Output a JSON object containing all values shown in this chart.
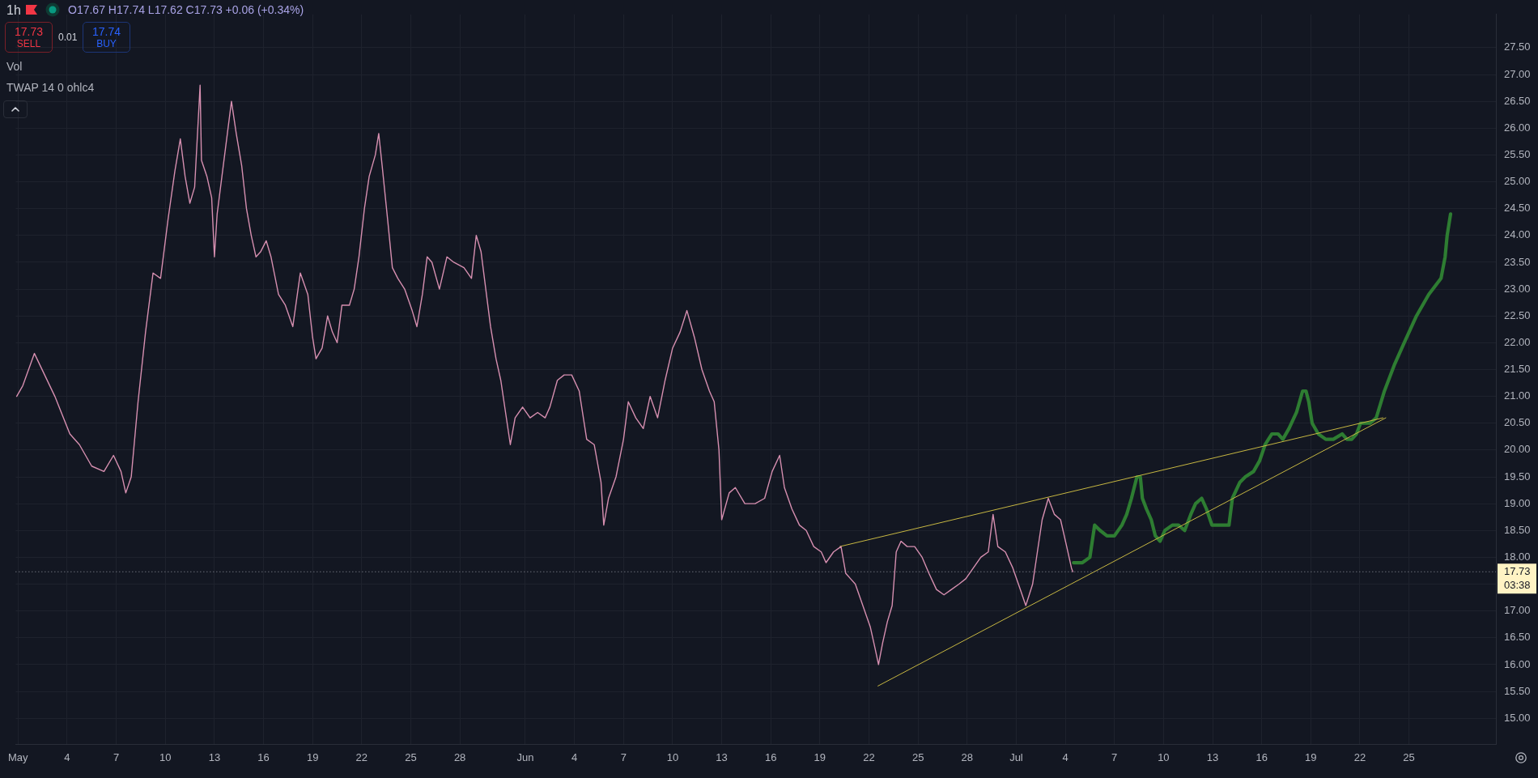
{
  "chart_data": {
    "type": "line",
    "title": "1h",
    "subtitle": "O17.67 H17.74 L17.62 C17.73 +0.06 (+0.34%)",
    "annotations": [
      "17.73",
      "SELL",
      "0.01",
      "17.74",
      "BUY",
      "Vol",
      "TWAP 14 0 ohlc4",
      "03:38"
    ],
    "xlim": [
      "--04-30T20:30",
      "--07-30T07:30"
    ],
    "xticks": [
      {
        "value": "--05-01",
        "label": "May"
      },
      {
        "value": "--05-04",
        "label": "4"
      },
      {
        "value": "--05-07",
        "label": "7"
      },
      {
        "value": "--05-10",
        "label": "10"
      },
      {
        "value": "--05-13",
        "label": "13"
      },
      {
        "value": "--05-16",
        "label": "16"
      },
      {
        "value": "--05-19",
        "label": "19"
      },
      {
        "value": "--05-22",
        "label": "22"
      },
      {
        "value": "--05-25",
        "label": "25"
      },
      {
        "value": "--05-28",
        "label": "28"
      },
      {
        "value": "--06-01",
        "label": "Jun"
      },
      {
        "value": "--06-04",
        "label": "4"
      },
      {
        "value": "--06-07",
        "label": "7"
      },
      {
        "value": "--06-10",
        "label": "10"
      },
      {
        "value": "--06-13",
        "label": "13"
      },
      {
        "value": "--06-16",
        "label": "16"
      },
      {
        "value": "--06-19",
        "label": "19"
      },
      {
        "value": "--06-22",
        "label": "22"
      },
      {
        "value": "--06-25",
        "label": "25"
      },
      {
        "value": "--06-28",
        "label": "28"
      },
      {
        "value": "--07-01",
        "label": "Jul"
      },
      {
        "value": "--07-04",
        "label": "4"
      },
      {
        "value": "--07-07",
        "label": "7"
      },
      {
        "value": "--07-10",
        "label": "10"
      },
      {
        "value": "--07-13",
        "label": "13"
      },
      {
        "value": "--07-16",
        "label": "16"
      },
      {
        "value": "--07-19",
        "label": "19"
      },
      {
        "value": "--07-22",
        "label": "22"
      },
      {
        "value": "--07-25",
        "label": "25"
      }
    ],
    "ylim": [
      14.52,
      28.12
    ],
    "yticks": [
      {
        "value": 15,
        "label": "15.00"
      },
      {
        "value": 15.5,
        "label": "15.50"
      },
      {
        "value": 16,
        "label": "16.00"
      },
      {
        "value": 16.5,
        "label": "16.50"
      },
      {
        "value": 17,
        "label": "17.00"
      },
      {
        "value": 17.5,
        "label": null
      },
      {
        "value": 18,
        "label": "18.00"
      },
      {
        "value": 18.5,
        "label": "18.50"
      },
      {
        "value": 19,
        "label": "19.00"
      },
      {
        "value": 19.5,
        "label": "19.50"
      },
      {
        "value": 20,
        "label": "20.00"
      },
      {
        "value": 20.5,
        "label": "20.50"
      },
      {
        "value": 21,
        "label": "21.00"
      },
      {
        "value": 21.5,
        "label": "21.50"
      },
      {
        "value": 22,
        "label": "22.00"
      },
      {
        "value": 22.5,
        "label": "22.50"
      },
      {
        "value": 23,
        "label": "23.00"
      },
      {
        "value": 23.5,
        "label": "23.50"
      },
      {
        "value": 24,
        "label": "24.00"
      },
      {
        "value": 24.5,
        "label": "24.50"
      },
      {
        "value": 25,
        "label": "25.00"
      },
      {
        "value": 25.5,
        "label": "25.50"
      },
      {
        "value": 26,
        "label": "26.00"
      },
      {
        "value": 26.5,
        "label": "26.50"
      },
      {
        "value": 27,
        "label": "27.00"
      },
      {
        "value": 27.5,
        "label": "27.50"
      }
    ],
    "grid": true,
    "marker": "none",
    "line_style": "solid",
    "ref_lines": [
      {
        "axis": "y",
        "value": 17.73,
        "label": "17.73",
        "color": "#9598a1",
        "line_style": "dotted"
      }
    ],
    "series": [
      {
        "color": "#d68fb0",
        "x": [
          "--04-30T22:00",
          "--05-01T07:00",
          "--05-02T00:00",
          "--05-03T06:00",
          "--05-04T04:00",
          "--05-04T18:00",
          "--05-05T12:00",
          "--05-06T06:00",
          "--05-06T20:00",
          "--05-07T07:00",
          "--05-07T14:00",
          "--05-07T22:00",
          "--05-08T08:00",
          "--05-08T19:00",
          "--05-09T06:00",
          "--05-09T17:00",
          "--05-10T04:00",
          "--05-10T14:00",
          "--05-10T22:00",
          "--05-11T05:00",
          "--05-11T12:00",
          "--05-11T19:00",
          "--05-12T03:00",
          "--05-12T05:00",
          "--05-12T13:00",
          "--05-12T20:00",
          "--05-13T00:00",
          "--05-13T04:00",
          "--05-13T11:00",
          "--05-13T19:00",
          "--05-14T01:00",
          "--05-14T08:00",
          "--05-14T16:00",
          "--05-14T23:00",
          "--05-15T06:00",
          "--05-15T13:00",
          "--05-15T20:00",
          "--05-16T04:00",
          "--05-16T11:00",
          "--05-16T22:00",
          "--05-17T08:00",
          "--05-17T19:00",
          "--05-18T06:00",
          "--05-18T17:00",
          "--05-19T00:00",
          "--05-19T05:00",
          "--05-19T14:00",
          "--05-19T22:00",
          "--05-20T05:00",
          "--05-20T12:00",
          "--05-20T19:00",
          "--05-21T06:00",
          "--05-21T13:00",
          "--05-21T20:00",
          "--05-22T04:00",
          "--05-22T11:00",
          "--05-22T20:00",
          "--05-23T01:00",
          "--05-23T06:00",
          "--05-23T14:00",
          "--05-23T21:00",
          "--05-24T05:00",
          "--05-24T15:00",
          "--05-25T02:00",
          "--05-25T09:00",
          "--05-25T17:00",
          "--05-26T00:00",
          "--05-26T07:00",
          "--05-26T18:00",
          "--05-27T05:00",
          "--05-27T15:00",
          "--05-28T06:00",
          "--05-28T17:00",
          "--05-29T00:00",
          "--05-29T07:00",
          "--05-29T14:00",
          "--05-29T21:00",
          "--05-30T05:00",
          "--05-30T12:00",
          "--05-30T19:00",
          "--05-31T02:00",
          "--05-31T09:00",
          "--05-31T20:00",
          "--06-01T07:00",
          "--06-01T18:00",
          "--06-02T05:00",
          "--06-02T12:00",
          "--06-02T23:00",
          "--06-03T09:00",
          "--06-03T20:00",
          "--06-04T07:00",
          "--06-04T18:00",
          "--06-05T05:00",
          "--06-05T15:00",
          "--06-05T19:00",
          "--06-06T02:00",
          "--06-06T13:00",
          "--06-07T00:00",
          "--06-07T07:00",
          "--06-07T18:00",
          "--06-08T05:00",
          "--06-08T15:00",
          "--06-09T02:00",
          "--06-09T13:00",
          "--06-10T00:00",
          "--06-10T11:00",
          "--06-10T21:00",
          "--06-11T08:00",
          "--06-11T19:00",
          "--06-12T06:00",
          "--06-12T13:00",
          "--06-12T20:00",
          "--06-13T00:00",
          "--06-13T11:00",
          "--06-13T20:00",
          "--06-14T10:00",
          "--06-15T01:00",
          "--06-15T15:00",
          "--06-16T02:00",
          "--06-16T13:00",
          "--06-16T20:00",
          "--06-17T07:00",
          "--06-17T18:00",
          "--06-18T04:00",
          "--06-18T15:00",
          "--06-19T02:00",
          "--06-19T09:00",
          "--06-19T20:00",
          "--06-20T07:00",
          "--06-20T14:00",
          "--06-20T21:00",
          "--06-21T04:00",
          "--06-21T15:00",
          "--06-22T02:00",
          "--06-22T09:00",
          "--06-22T14:00",
          "--06-22T20:00",
          "--06-23T03:00",
          "--06-23T10:00",
          "--06-23T16:00",
          "--06-23T23:00",
          "--06-24T08:00",
          "--06-24T19:00",
          "--06-25T06:00",
          "--06-25T16:00",
          "--06-26T03:00",
          "--06-26T14:00",
          "--06-27T01:00",
          "--06-27T12:00",
          "--06-27T22:00",
          "--06-28T09:00",
          "--06-28T20:00",
          "--06-29T07:00",
          "--06-29T14:00",
          "--06-29T21:00",
          "--06-30T08:00",
          "--06-30T19:00",
          "--07-01T06:00",
          "--07-01T14:00",
          "--07-02T00:00",
          "--07-02T07:00",
          "--07-02T14:00",
          "--07-02T23:00",
          "--07-03T08:00",
          "--07-03T17:00",
          "--07-04T02:00",
          "--07-04T09:00",
          "--07-04T11:00"
        ],
        "values": [
          21.0,
          21.2,
          21.8,
          21.0,
          20.3,
          20.1,
          19.7,
          19.6,
          19.9,
          19.6,
          19.2,
          19.5,
          20.9,
          22.2,
          23.3,
          23.2,
          24.3,
          25.2,
          25.8,
          25.1,
          24.6,
          24.9,
          26.8,
          25.4,
          25.1,
          24.7,
          23.6,
          24.4,
          25.1,
          25.9,
          26.5,
          25.9,
          25.3,
          24.5,
          24.0,
          23.6,
          23.7,
          23.9,
          23.6,
          22.9,
          22.7,
          22.3,
          23.3,
          22.9,
          22.1,
          21.7,
          21.9,
          22.5,
          22.2,
          22.0,
          22.7,
          22.7,
          23.0,
          23.6,
          24.5,
          25.1,
          25.5,
          25.9,
          25.3,
          24.3,
          23.4,
          23.2,
          23.0,
          22.6,
          22.3,
          22.9,
          23.6,
          23.5,
          23.0,
          23.6,
          23.5,
          23.4,
          23.2,
          24.0,
          23.7,
          23.0,
          22.3,
          21.7,
          21.3,
          20.7,
          20.1,
          20.6,
          20.8,
          20.6,
          20.7,
          20.6,
          20.8,
          21.3,
          21.4,
          21.4,
          21.1,
          20.2,
          20.1,
          19.4,
          18.6,
          19.1,
          19.5,
          20.2,
          20.9,
          20.6,
          20.4,
          21.0,
          20.6,
          21.3,
          21.9,
          22.2,
          22.6,
          22.1,
          21.5,
          21.1,
          20.9,
          20.0,
          18.7,
          19.2,
          19.3,
          19.0,
          19.0,
          19.1,
          19.6,
          19.9,
          19.3,
          18.9,
          18.6,
          18.5,
          18.2,
          18.1,
          17.9,
          18.1,
          18.2,
          17.7,
          17.6,
          17.5,
          17.1,
          16.7,
          16.3,
          16.0,
          16.4,
          16.8,
          17.1,
          18.1,
          18.3,
          18.2,
          18.2,
          18.0,
          17.7,
          17.4,
          17.3,
          17.4,
          17.5,
          17.6,
          17.8,
          18.0,
          18.1,
          18.8,
          18.2,
          18.1,
          17.8,
          17.4,
          17.1,
          17.5,
          18.1,
          18.7,
          19.1,
          18.8,
          18.7,
          18.2,
          17.8,
          17.73
        ]
      },
      {
        "color": "#c7b742",
        "x": [
          "--06-20T05:00",
          "--07-23T10:00"
        ],
        "values": [
          18.2,
          20.6
        ]
      },
      {
        "color": "#c7b742",
        "x": [
          "--06-22T13:00",
          "--07-23T14:00"
        ],
        "values": [
          15.6,
          20.6
        ]
      },
      {
        "color": "#2e7d32",
        "x": [
          "--07-04T12:00",
          "--07-05T01:00",
          "--07-05T12:00",
          "--07-05T19:00",
          "--07-06T03:00",
          "--07-06T13:00",
          "--07-07T00:00",
          "--07-07T11:00",
          "--07-07T18:00",
          "--07-08T01:00",
          "--07-08T09:00",
          "--07-08T14:00",
          "--07-08T17:00",
          "--07-08T23:00",
          "--07-09T06:00",
          "--07-09T12:00",
          "--07-09T19:00",
          "--07-10T02:00",
          "--07-10T13:00",
          "--07-10T22:00",
          "--07-11T07:00",
          "--07-11T16:00",
          "--07-11T23:00",
          "--07-12T08:00",
          "--07-12T15:00",
          "--07-12T23:00",
          "--07-13T11:00",
          "--07-14T00:00",
          "--07-14T05:00",
          "--07-14T16:00",
          "--07-15T00:00",
          "--07-15T12:00",
          "--07-15T21:00",
          "--07-16T05:00",
          "--07-16T15:00",
          "--07-17T00:00",
          "--07-17T07:00",
          "--07-17T16:00",
          "--07-18T03:00",
          "--07-18T12:00",
          "--07-18T17:00",
          "--07-18T21:00",
          "--07-19T02:00",
          "--07-19T11:00",
          "--07-19T22:00",
          "--07-20T09:00",
          "--07-20T22:00",
          "--07-21T05:00",
          "--07-21T12:00",
          "--07-21T19:00",
          "--07-22T01:00",
          "--07-22T15:00",
          "--07-23T00:00",
          "--07-23T12:00",
          "--07-24T03:00",
          "--07-24T17:00",
          "--07-25T11:00",
          "--07-26T05:00",
          "--07-26T23:00",
          "--07-27T05:00",
          "--07-27T08:00",
          "--07-27T13:00"
        ],
        "values": [
          17.9,
          17.9,
          18.0,
          18.6,
          18.5,
          18.4,
          18.4,
          18.6,
          18.8,
          19.1,
          19.5,
          19.5,
          19.1,
          18.9,
          18.7,
          18.4,
          18.3,
          18.5,
          18.6,
          18.6,
          18.5,
          18.8,
          19.0,
          19.1,
          18.9,
          18.6,
          18.6,
          18.6,
          19.1,
          19.4,
          19.5,
          19.6,
          19.8,
          20.1,
          20.3,
          20.3,
          20.2,
          20.4,
          20.7,
          21.1,
          21.1,
          20.9,
          20.5,
          20.3,
          20.2,
          20.2,
          20.3,
          20.2,
          20.2,
          20.3,
          20.5,
          20.5,
          20.6,
          21.1,
          21.6,
          22.0,
          22.5,
          22.9,
          23.2,
          23.6,
          24.0,
          24.4
        ]
      }
    ]
  }
}
